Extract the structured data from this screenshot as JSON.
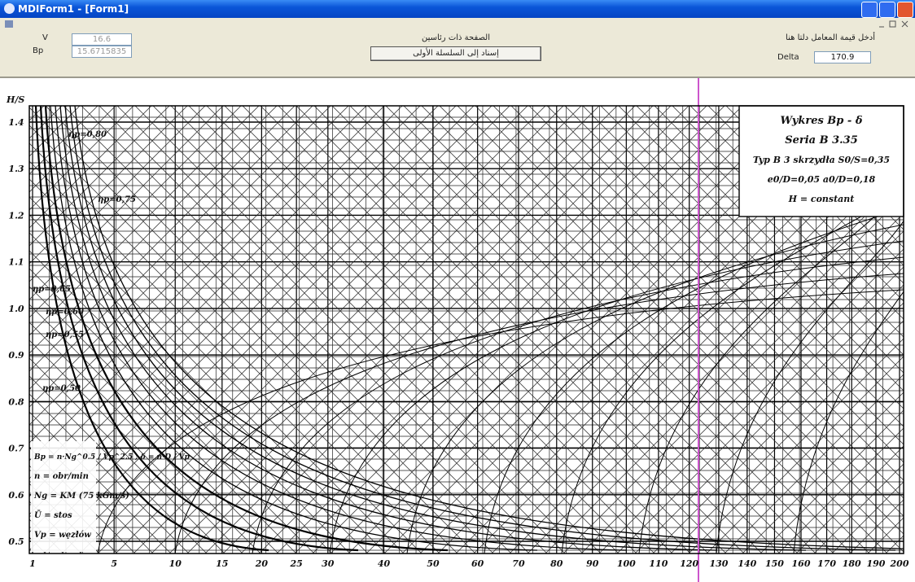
{
  "window": {
    "title": "MDIForm1 - [Form1]"
  },
  "toolbar": {
    "v_label": "V",
    "bp_label": "Bp",
    "v_value": "16.6",
    "bp_value": "15.6715835",
    "center_label": "الصفحة ذات رئاسين",
    "button": "إسناد إلى السلسلة الأولى",
    "right_label": "أدخل قيمة المعامل دلتا هنا",
    "delta_label": "Delta",
    "delta_value": "170.9"
  },
  "diagram": {
    "y_axis_label": "H/S",
    "yticks": [
      "1.4",
      "1.3",
      "1.2",
      "1.1",
      "1.0",
      "0.9",
      "0.8",
      "0.7",
      "0.6",
      "0.5"
    ],
    "xticks": [
      1,
      5,
      10,
      15,
      20,
      25,
      30,
      40,
      50,
      60,
      70,
      80,
      90,
      100,
      110,
      120,
      130,
      140,
      150,
      160,
      170,
      180,
      190,
      200
    ],
    "legend": [
      "Wykres Bp - δ",
      "Seria B 3.35",
      "Typ B  3 skrzydła  S0/S=0,35",
      "e0/D=0,05   a0/D=0,18",
      "H = constant"
    ],
    "formula": [
      "Bp = n·Ng^0.5 / Vp^2.5 ;  δ = n·D / Vp",
      "n = obr/min",
      "Ng = KM (75 kGm/s)",
      "Ū = stos",
      "Vp = węzłów"
    ],
    "efficiency_labels": [
      "ηp=0,80",
      "ηp=0,75",
      "ηp=0,65",
      "ηp=0,60",
      "ηp=0,55",
      "ηp=0,50"
    ]
  }
}
